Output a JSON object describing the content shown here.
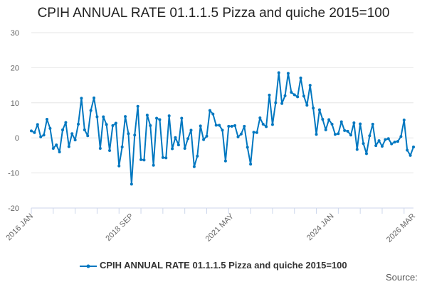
{
  "chart_data": {
    "type": "line",
    "title": "CPIH ANNUAL RATE 01.1.1.5 Pizza and quiche 2015=100",
    "source_label": "Source:",
    "x_start": "2016 JAN",
    "x_end": "2026 MAR",
    "x_tick_labels": [
      "2016 JAN",
      "2018 SEP",
      "2021 MAY",
      "2024 JAN",
      "2026 MAR"
    ],
    "y_ticks": [
      30,
      20,
      10,
      0,
      -10,
      -20
    ],
    "ylim": [
      -20,
      30
    ],
    "grid": true,
    "legend_position": "bottom",
    "color": "#0077c0",
    "series": [
      {
        "name": "CPIH ANNUAL RATE 01.1.1.5 Pizza and quiche 2015=100",
        "values": [
          2.0,
          1.5,
          3.8,
          0.3,
          0.8,
          5.3,
          2.7,
          -3.0,
          -2.0,
          -4.0,
          2.3,
          4.4,
          -2.5,
          1.2,
          -0.6,
          3.9,
          11.3,
          2.3,
          0.6,
          7.8,
          11.4,
          6.0,
          -3.0,
          6.0,
          3.8,
          -3.6,
          3.5,
          4.2,
          -8.0,
          -2.6,
          6.1,
          1.2,
          -13.2,
          0.8,
          9.0,
          -6.2,
          -6.3,
          6.5,
          3.5,
          -7.8,
          5.6,
          5.2,
          -5.6,
          -5.7,
          6.3,
          -3.1,
          0.1,
          -2.0,
          5.6,
          -3.0,
          -0.2,
          2.2,
          -8.2,
          -5.2,
          3.4,
          -0.5,
          0.5,
          7.8,
          6.8,
          3.6,
          3.6,
          2.2,
          -6.6,
          3.3,
          3.3,
          3.5,
          0.3,
          1.1,
          3.3,
          -2.7,
          -7.5,
          1.6,
          1.5,
          5.7,
          3.9,
          3.2,
          12.2,
          3.8,
          10.0,
          18.6,
          9.8,
          12.0,
          18.4,
          13.0,
          12.3,
          11.7,
          17.1,
          11.9,
          9.3,
          15.0,
          8.5,
          1.0,
          8.0,
          5.3,
          2.3,
          5.2,
          3.9,
          1.0,
          1.2,
          4.6,
          2.1,
          1.9,
          0.8,
          4.3,
          -3.3,
          4.0,
          -1.6,
          -4.5,
          0.6,
          3.9,
          -2.2,
          -0.8,
          -2.4,
          -0.5,
          -0.2,
          -1.7,
          -1.2,
          -1.0,
          0.4,
          5.1,
          -3.5,
          -5.0,
          -2.6
        ]
      }
    ]
  }
}
